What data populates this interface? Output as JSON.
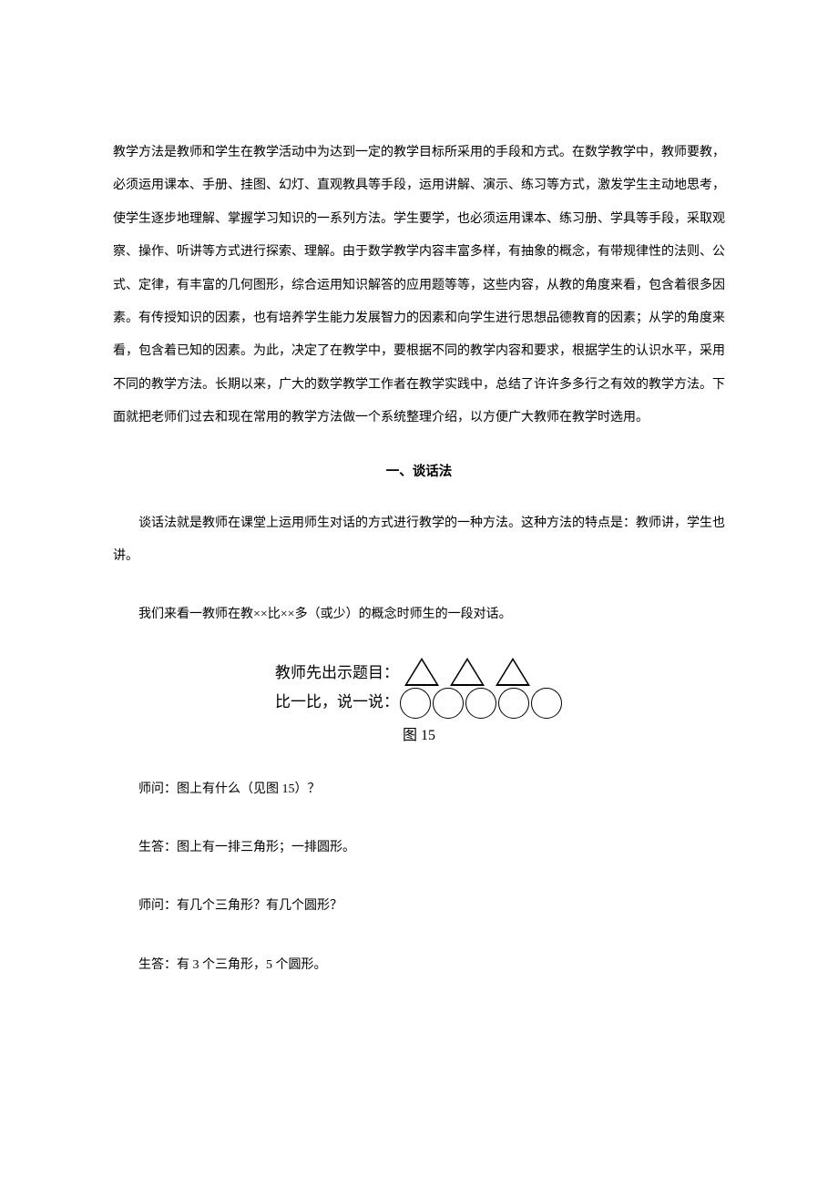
{
  "intro_paragraph": "教学方法是教师和学生在教学活动中为达到一定的教学目标所采用的手段和方式。在数学教学中，教师要教，必须运用课本、手册、挂图、幻灯、直观教具等手段，运用讲解、演示、练习等方式，激发学生主动地思考，使学生逐步地理解、掌握学习知识的一系列方法。学生要学，也必须运用课本、练习册、学具等手段，采取观察、操作、听讲等方式进行探索、理解。由于数学教学内容丰富多样，有抽象的概念，有带规律性的法则、公式、定律，有丰富的几何图形，综合运用知识解答的应用题等等，这些内容，从教的角度来看，包含着很多因素。有传授知识的因素，也有培养学生能力发展智力的因素和向学生进行思想品德教育的因素；从学的角度来看，包含着已知的因素。为此，决定了在教学中，要根据不同的教学内容和要求，根据学生的认识水平，采用不同的教学方法。长期以来，广大的数学教学工作者在教学实践中，总结了许许多多行之有效的教学方法。下面就把老师们过去和现在常用的教学方法做一个系统整理介绍，以方便广大教师在教学时选用。",
  "section_heading": "一、谈话法",
  "para_definition": "谈话法就是教师在课堂上运用师生对话的方式进行教学的一种方法。这种方法的特点是：教师讲，学生也讲。",
  "para_example_intro": "我们来看一教师在教××比××多（或少）的概念时师生的一段对话。",
  "figure": {
    "label_line1": "教师先出示题目：",
    "label_line2": "比一比，说一说：",
    "triangle_count": 3,
    "circle_count": 5,
    "shape_stroke": "#000000",
    "shape_fill": "#ffffff",
    "caption": "图 15"
  },
  "dialogue": [
    "师问：图上有什么（见图 15）？",
    "生答：图上有一排三角形；一排圆形。",
    "师问：有几个三角形？有几个圆形？",
    "生答：有 3 个三角形，5 个圆形。"
  ]
}
